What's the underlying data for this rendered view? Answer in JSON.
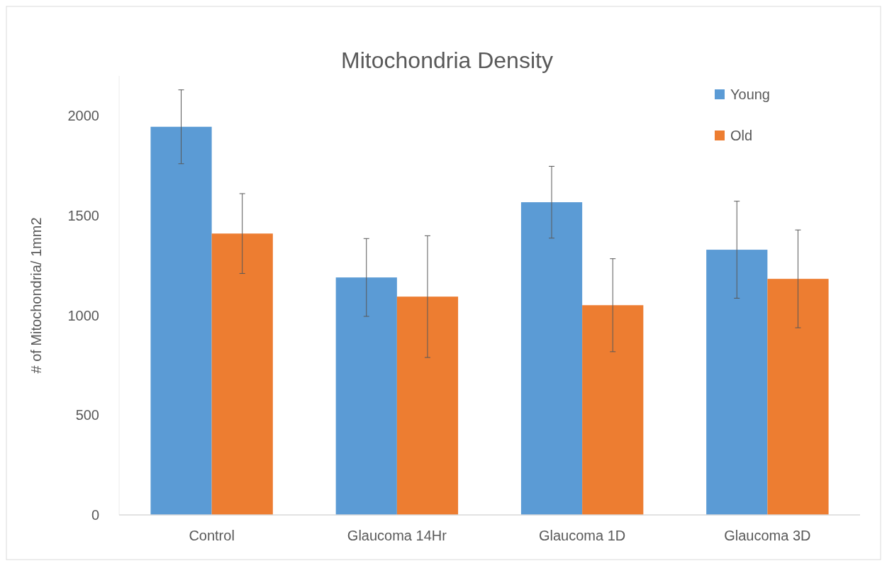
{
  "chart_data": {
    "type": "bar",
    "title": "Mitochondria Density",
    "ylabel": "# of Mitochondria/ 1mm2",
    "categories": [
      "Control",
      "Glaucoma 14Hr",
      "Glaucoma 1D",
      "Glaucoma 3D"
    ],
    "series": [
      {
        "name": "Young",
        "color": "#5b9bd5",
        "values": [
          1945,
          1190,
          1567,
          1329
        ],
        "errors": [
          185,
          195,
          180,
          243
        ]
      },
      {
        "name": "Old",
        "color": "#ed7d31",
        "values": [
          1410,
          1094,
          1051,
          1183
        ],
        "errors": [
          200,
          305,
          233,
          245
        ]
      }
    ],
    "ylim": [
      0,
      2200
    ],
    "yticks": [
      0,
      500,
      1000,
      1500,
      2000
    ],
    "grid": false,
    "legend": "top right"
  }
}
